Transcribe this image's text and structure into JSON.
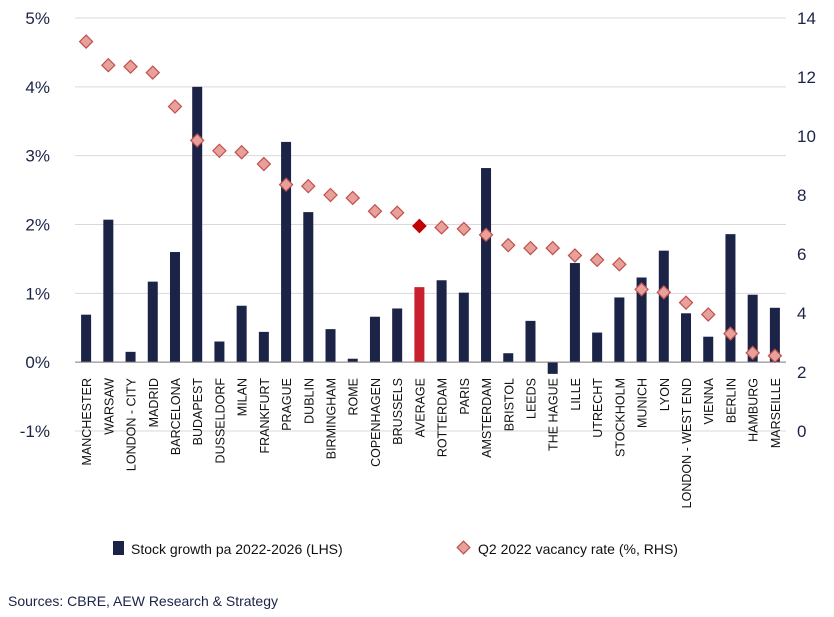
{
  "chart_data": {
    "type": "bar+scatter",
    "categories": [
      "MANCHESTER",
      "WARSAW",
      "LONDON - CITY",
      "MADRID",
      "BARCELONA",
      "BUDAPEST",
      "DUSSELDORF",
      "MILAN",
      "FRANKFURT",
      "PRAGUE",
      "DUBLIN",
      "BIRMINGHAM",
      "ROME",
      "COPENHAGEN",
      "BRUSSELS",
      "AVERAGE",
      "ROTTERDAM",
      "PARIS",
      "AMSTERDAM",
      "BRISTOL",
      "LEEDS",
      "THE HAGUE",
      "LILLE",
      "UTRECHT",
      "STOCKHOLM",
      "MUNICH",
      "LYON",
      "LONDON - WEST END",
      "VIENNA",
      "BERLIN",
      "HAMBURG",
      "MARSEILLE"
    ],
    "highlight_category": "AVERAGE",
    "series": [
      {
        "name": "Stock growth pa 2022-2026 (LHS)",
        "kind": "bar",
        "axis": "left",
        "values": [
          0.69,
          2.07,
          0.15,
          1.17,
          1.6,
          4.0,
          0.3,
          0.82,
          0.44,
          3.2,
          2.18,
          0.48,
          0.05,
          0.66,
          0.78,
          1.09,
          1.19,
          1.01,
          2.82,
          0.13,
          0.6,
          -0.17,
          1.44,
          0.43,
          0.94,
          1.23,
          1.62,
          0.71,
          0.37,
          1.86,
          0.98,
          0.79
        ]
      },
      {
        "name": "Q2 2022 vacancy rate (%, RHS)",
        "kind": "scatter",
        "axis": "right",
        "values": [
          13.2,
          12.4,
          12.35,
          12.15,
          11.0,
          9.85,
          9.5,
          9.45,
          9.05,
          8.35,
          8.3,
          8.0,
          7.9,
          7.45,
          7.4,
          6.95,
          6.9,
          6.85,
          6.65,
          6.3,
          6.2,
          6.2,
          5.95,
          5.8,
          5.65,
          4.8,
          4.7,
          4.35,
          3.95,
          3.3,
          2.65,
          2.55
        ]
      }
    ],
    "y_left": {
      "min": -1,
      "max": 5,
      "ticks": [
        "-1%",
        "0%",
        "1%",
        "2%",
        "3%",
        "4%",
        "5%"
      ]
    },
    "y_right": {
      "min": 0,
      "max": 14,
      "ticks": [
        "0",
        "2",
        "4",
        "6",
        "8",
        "10",
        "12",
        "14"
      ]
    },
    "legend_position": "bottom",
    "colors": {
      "bar": "#1b2347",
      "bar_highlight": "#c8202e",
      "marker": "#e8a09a",
      "marker_edge": "#c0504d",
      "marker_highlight": "#c00000",
      "text": "#1b2347"
    }
  },
  "source_text": "Sources: CBRE, AEW Research & Strategy"
}
